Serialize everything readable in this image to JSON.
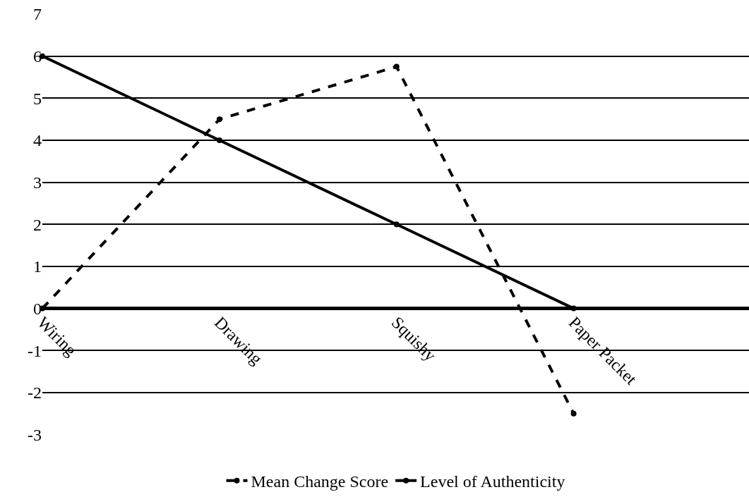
{
  "chart_data": {
    "type": "line",
    "categories": [
      "Wiring",
      "Drawing",
      "Squishy",
      "Paper Packet"
    ],
    "series": [
      {
        "name": "Mean Change Score",
        "color": "#000000",
        "values": [
          0,
          4.5,
          5.75,
          -2.5
        ],
        "line_style": "dashed"
      },
      {
        "name": "Level of Authenticity",
        "color": "#000000",
        "values": [
          6,
          4,
          2,
          0
        ],
        "line_style": "solid"
      }
    ],
    "ylim": [
      -3,
      7
    ],
    "yticks": [
      -3,
      -2,
      -1,
      0,
      1,
      2,
      3,
      4,
      5,
      6,
      7
    ],
    "grid": "y",
    "legend": "bottom",
    "marker": "circle"
  }
}
